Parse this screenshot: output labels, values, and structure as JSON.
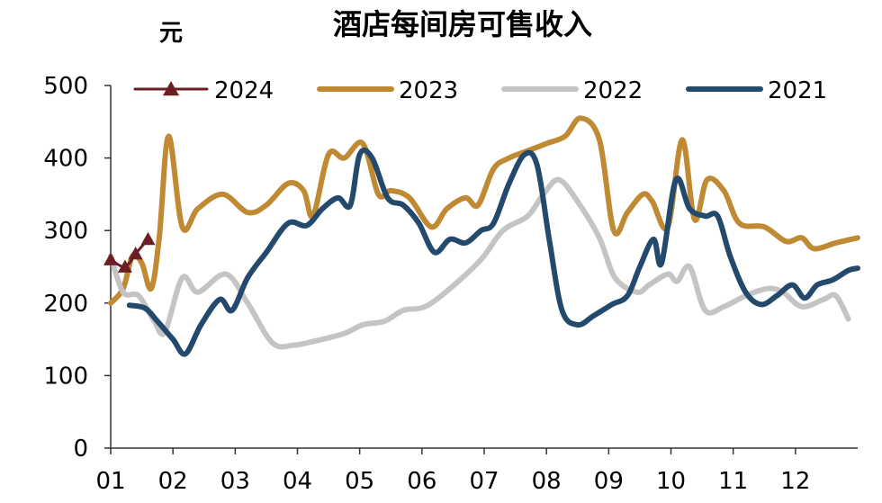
{
  "chart_data": {
    "type": "line",
    "title": "酒店每间房可售收入",
    "ylabel": "元",
    "xlabel": "",
    "ylim": [
      0,
      500
    ],
    "xlim": [
      1,
      13
    ],
    "yticks": [
      0,
      100,
      200,
      300,
      400,
      500
    ],
    "xticks": [
      "01",
      "02",
      "03",
      "04",
      "05",
      "06",
      "07",
      "08",
      "09",
      "10",
      "11",
      "12"
    ],
    "grid": false,
    "legend_position": "top",
    "series": [
      {
        "name": "2024",
        "color": "#6b1f24",
        "marker": "triangle",
        "points": [
          [
            1.0,
            260
          ],
          [
            1.23,
            250
          ],
          [
            1.4,
            268
          ],
          [
            1.6,
            288
          ]
        ]
      },
      {
        "name": "2023",
        "color": "#c08a35",
        "marker": "none",
        "points": [
          [
            1.0,
            200
          ],
          [
            1.2,
            220
          ],
          [
            1.35,
            265
          ],
          [
            1.5,
            255
          ],
          [
            1.65,
            220
          ],
          [
            1.78,
            290
          ],
          [
            1.93,
            430
          ],
          [
            2.15,
            305
          ],
          [
            2.4,
            330
          ],
          [
            2.8,
            350
          ],
          [
            3.2,
            325
          ],
          [
            3.5,
            335
          ],
          [
            3.85,
            365
          ],
          [
            4.1,
            355
          ],
          [
            4.25,
            320
          ],
          [
            4.5,
            405
          ],
          [
            4.75,
            400
          ],
          [
            5.05,
            420
          ],
          [
            5.3,
            350
          ],
          [
            5.5,
            355
          ],
          [
            5.8,
            345
          ],
          [
            6.15,
            305
          ],
          [
            6.4,
            330
          ],
          [
            6.7,
            345
          ],
          [
            6.9,
            335
          ],
          [
            7.15,
            385
          ],
          [
            7.4,
            400
          ],
          [
            7.7,
            410
          ],
          [
            8.0,
            420
          ],
          [
            8.3,
            430
          ],
          [
            8.55,
            455
          ],
          [
            8.85,
            425
          ],
          [
            9.08,
            300
          ],
          [
            9.3,
            325
          ],
          [
            9.55,
            350
          ],
          [
            9.7,
            340
          ],
          [
            9.95,
            305
          ],
          [
            10.18,
            425
          ],
          [
            10.38,
            315
          ],
          [
            10.58,
            370
          ],
          [
            10.85,
            355
          ],
          [
            11.1,
            310
          ],
          [
            11.5,
            305
          ],
          [
            11.85,
            285
          ],
          [
            12.1,
            290
          ],
          [
            12.3,
            275
          ],
          [
            12.65,
            283
          ],
          [
            13.0,
            290
          ]
        ]
      },
      {
        "name": "2022",
        "color": "#c4c4c4",
        "marker": "none",
        "points": [
          [
            1.0,
            265
          ],
          [
            1.2,
            215
          ],
          [
            1.45,
            210
          ],
          [
            1.7,
            175
          ],
          [
            1.87,
            160
          ],
          [
            2.15,
            235
          ],
          [
            2.4,
            215
          ],
          [
            2.85,
            240
          ],
          [
            3.2,
            200
          ],
          [
            3.6,
            145
          ],
          [
            3.95,
            142
          ],
          [
            4.3,
            148
          ],
          [
            4.75,
            158
          ],
          [
            5.05,
            170
          ],
          [
            5.4,
            175
          ],
          [
            5.7,
            190
          ],
          [
            6.05,
            195
          ],
          [
            6.45,
            220
          ],
          [
            6.95,
            260
          ],
          [
            7.3,
            300
          ],
          [
            7.7,
            320
          ],
          [
            7.95,
            350
          ],
          [
            8.2,
            370
          ],
          [
            8.5,
            340
          ],
          [
            8.85,
            290
          ],
          [
            9.1,
            235
          ],
          [
            9.45,
            215
          ],
          [
            9.65,
            225
          ],
          [
            9.95,
            240
          ],
          [
            10.1,
            230
          ],
          [
            10.3,
            250
          ],
          [
            10.55,
            190
          ],
          [
            10.85,
            195
          ],
          [
            11.2,
            210
          ],
          [
            11.55,
            220
          ],
          [
            11.8,
            215
          ],
          [
            12.1,
            195
          ],
          [
            12.45,
            205
          ],
          [
            12.65,
            210
          ],
          [
            12.85,
            178
          ]
        ]
      },
      {
        "name": "2021",
        "color": "#23496d",
        "marker": "none",
        "points": [
          [
            1.3,
            197
          ],
          [
            1.55,
            193
          ],
          [
            1.75,
            175
          ],
          [
            2.0,
            150
          ],
          [
            2.2,
            130
          ],
          [
            2.45,
            170
          ],
          [
            2.75,
            205
          ],
          [
            2.95,
            190
          ],
          [
            3.2,
            235
          ],
          [
            3.5,
            270
          ],
          [
            3.85,
            310
          ],
          [
            4.15,
            307
          ],
          [
            4.4,
            330
          ],
          [
            4.65,
            345
          ],
          [
            4.85,
            335
          ],
          [
            5.0,
            405
          ],
          [
            5.2,
            400
          ],
          [
            5.45,
            345
          ],
          [
            5.7,
            335
          ],
          [
            5.95,
            310
          ],
          [
            6.2,
            270
          ],
          [
            6.45,
            288
          ],
          [
            6.7,
            283
          ],
          [
            6.95,
            300
          ],
          [
            7.15,
            310
          ],
          [
            7.4,
            365
          ],
          [
            7.65,
            405
          ],
          [
            7.85,
            390
          ],
          [
            8.05,
            285
          ],
          [
            8.25,
            190
          ],
          [
            8.5,
            170
          ],
          [
            8.75,
            182
          ],
          [
            9.05,
            198
          ],
          [
            9.3,
            210
          ],
          [
            9.5,
            250
          ],
          [
            9.72,
            288
          ],
          [
            9.85,
            255
          ],
          [
            10.08,
            370
          ],
          [
            10.3,
            330
          ],
          [
            10.55,
            320
          ],
          [
            10.75,
            320
          ],
          [
            10.95,
            265
          ],
          [
            11.2,
            215
          ],
          [
            11.45,
            198
          ],
          [
            11.7,
            210
          ],
          [
            11.95,
            225
          ],
          [
            12.15,
            207
          ],
          [
            12.35,
            225
          ],
          [
            12.6,
            232
          ],
          [
            12.85,
            245
          ],
          [
            13.0,
            248
          ]
        ]
      }
    ]
  }
}
